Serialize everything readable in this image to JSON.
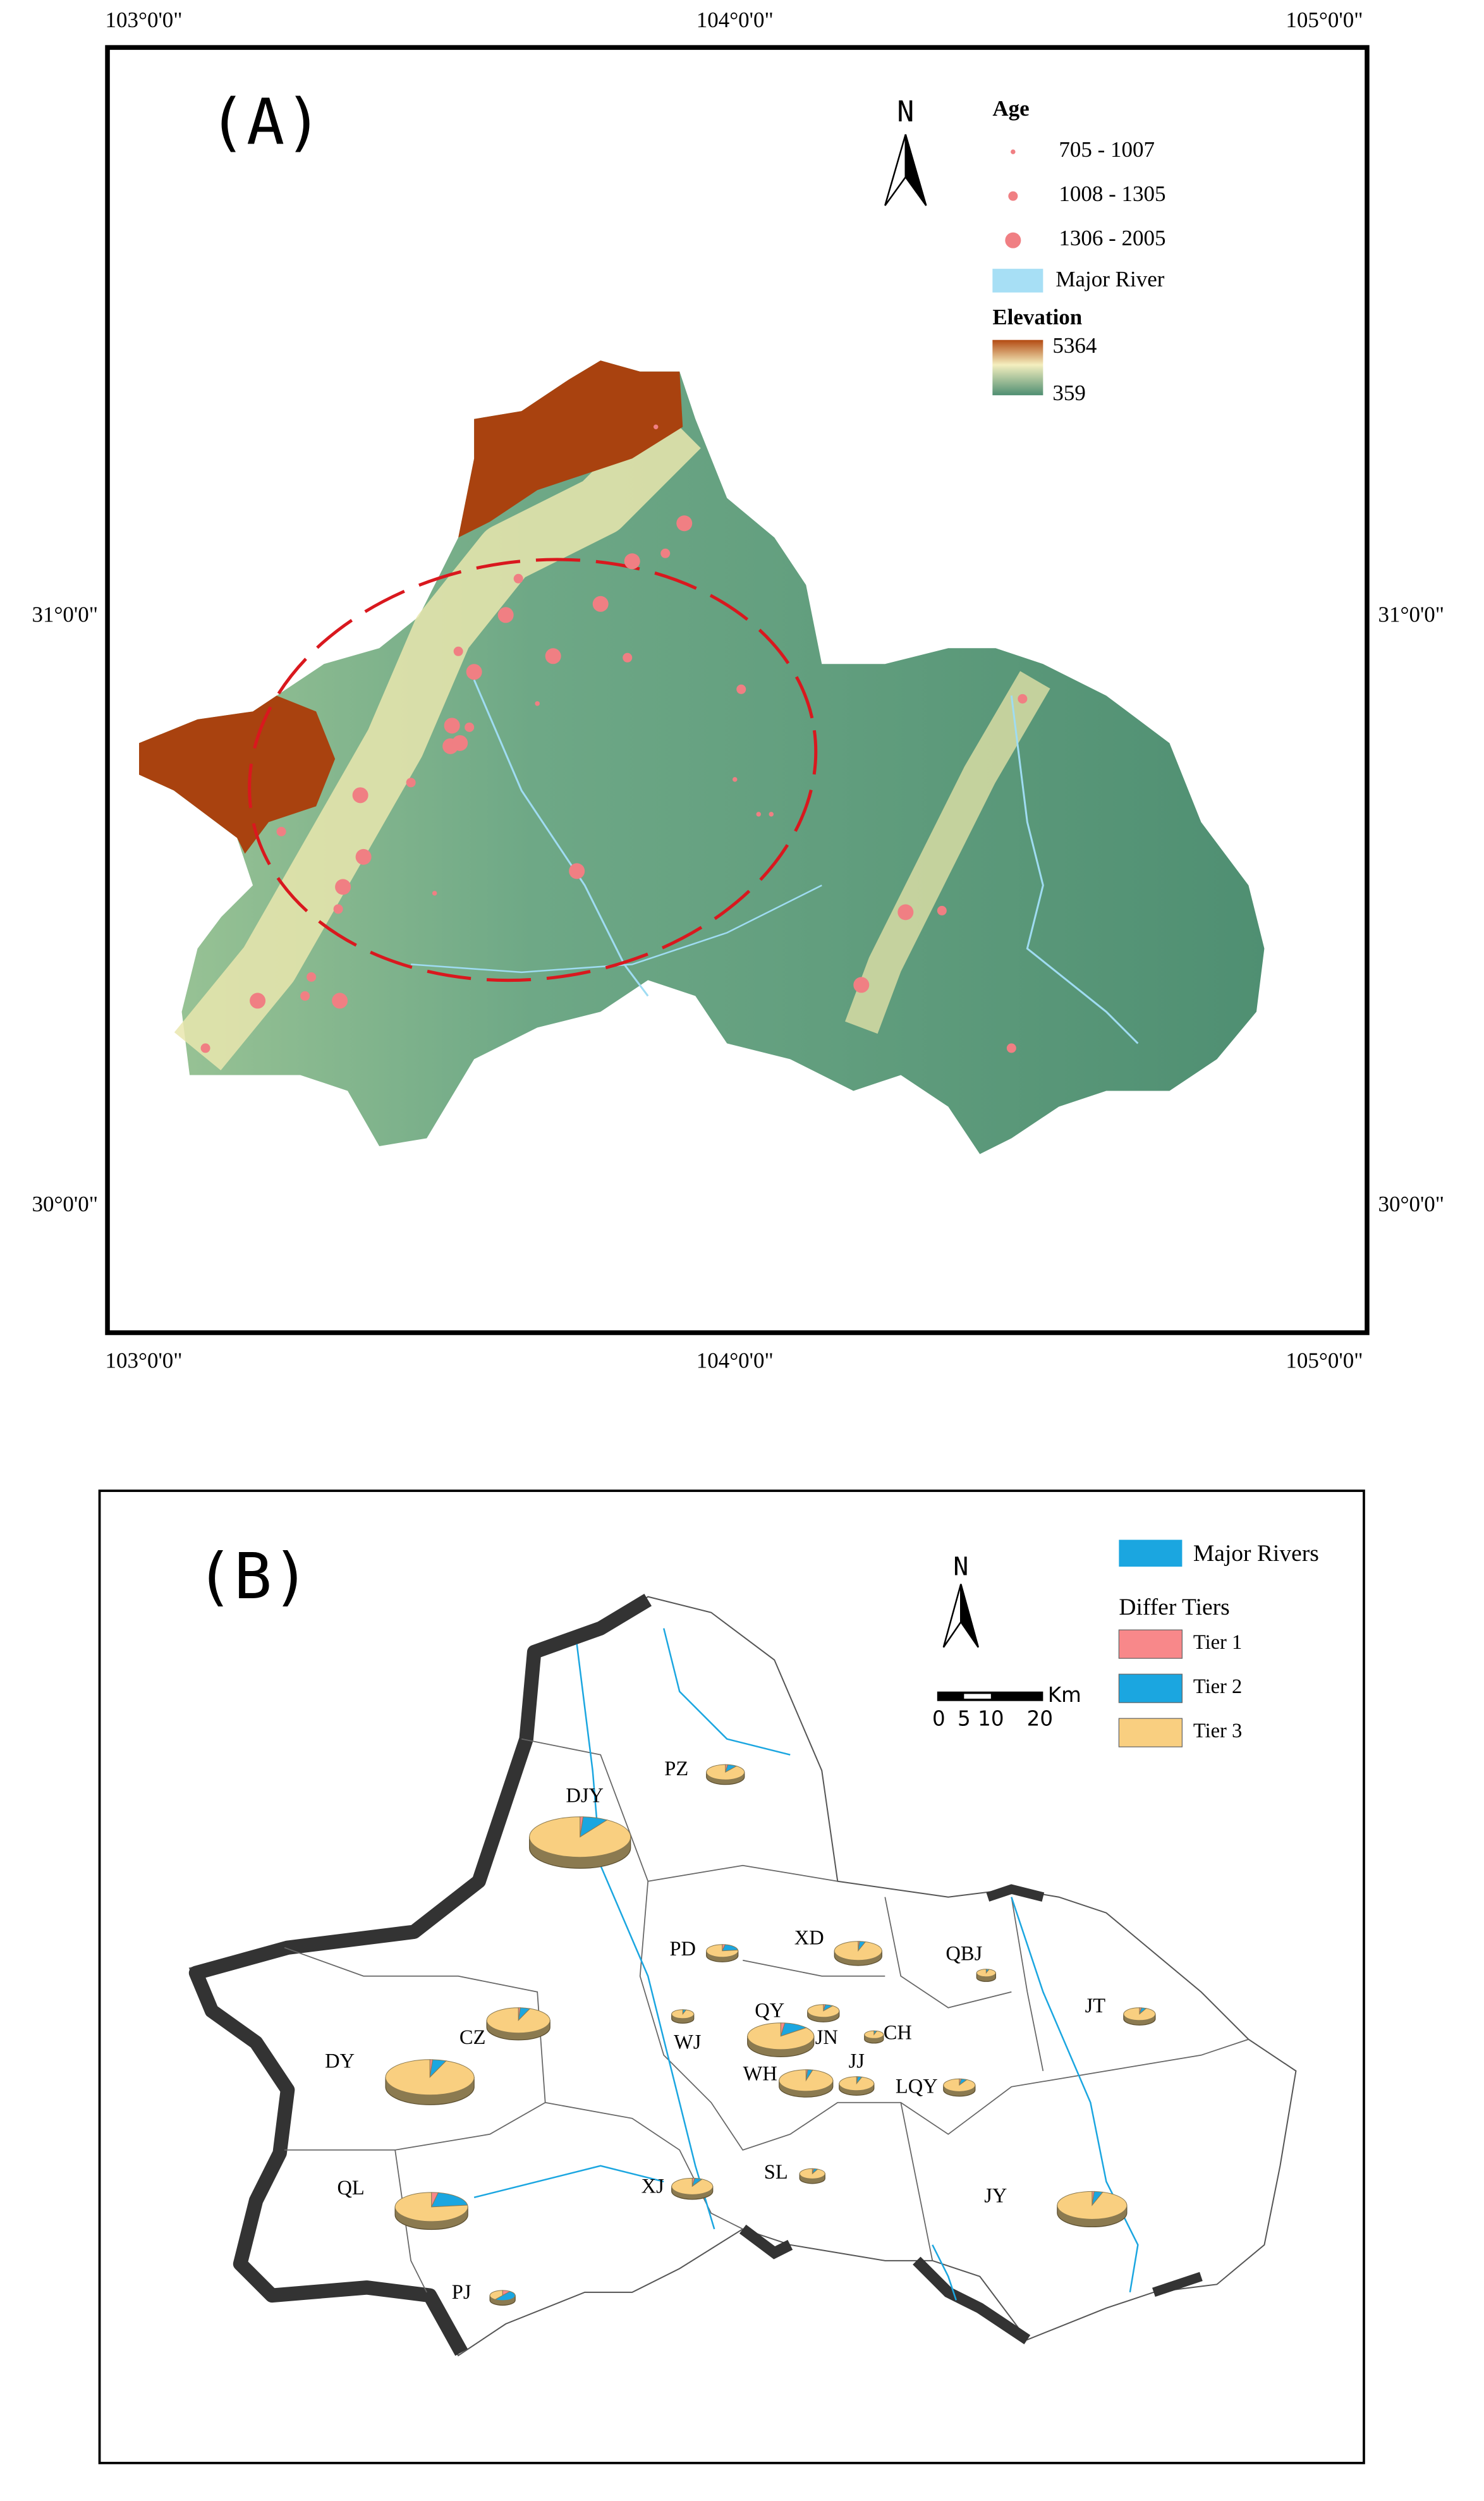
{
  "panel_a": {
    "label": "(A)",
    "lon_labels": [
      "103°0'0\"",
      "104°0'0\"",
      "105°0'0\""
    ],
    "lat_labels": [
      "31°0'0\"",
      "30°0'0\""
    ],
    "north": "N",
    "legend": {
      "age_title": "Age",
      "age_classes": [
        "705 - 1007",
        "1008 - 1305",
        "1306 - 2005"
      ],
      "river": "Major River",
      "elevation_title": "Elevation",
      "elevation_max": 5364,
      "elevation_min": 359
    }
  },
  "panel_b": {
    "label": "(B)",
    "north": "N",
    "scale_labels": [
      "0",
      "5",
      "10",
      "20"
    ],
    "scale_unit": "Km",
    "legend": {
      "river": "Major Rivers",
      "tiers_title": "Differ Tiers",
      "tiers": [
        {
          "name": "Tier 1",
          "color": "#f8888a"
        },
        {
          "name": "Tier 2",
          "color": "#1ba6e0"
        },
        {
          "name": "Tier 3",
          "color": "#f9cf80"
        }
      ]
    },
    "districts": [
      {
        "label": "DJY",
        "tiers": [
          1,
          8,
          91
        ]
      },
      {
        "label": "PZ",
        "tiers": [
          2,
          8,
          90
        ]
      },
      {
        "label": "PD",
        "tiers": [
          3,
          20,
          77
        ]
      },
      {
        "label": "XD",
        "tiers": [
          1,
          4,
          95
        ]
      },
      {
        "label": "QBJ",
        "tiers": [
          0,
          5,
          95
        ]
      },
      {
        "label": "CZ",
        "tiers": [
          1,
          5,
          94
        ]
      },
      {
        "label": "QY",
        "tiers": [
          2,
          12,
          86
        ]
      },
      {
        "label": "JN",
        "tiers": [
          2,
          8,
          90
        ]
      },
      {
        "label": "CH",
        "tiers": [
          0,
          5,
          95
        ]
      },
      {
        "label": "JT",
        "tiers": [
          2,
          5,
          93
        ]
      },
      {
        "label": "WJ",
        "tiers": [
          0,
          5,
          95
        ]
      },
      {
        "label": "DY",
        "tiers": [
          1,
          5,
          94
        ]
      },
      {
        "label": "WH",
        "tiers": [
          1,
          3,
          96
        ]
      },
      {
        "label": "JJ",
        "tiers": [
          1,
          4,
          95
        ]
      },
      {
        "label": "LQY",
        "tiers": [
          2,
          6,
          92
        ]
      },
      {
        "label": "QL",
        "tiers": [
          3,
          20,
          77
        ]
      },
      {
        "label": "XJ",
        "tiers": [
          2,
          6,
          92
        ]
      },
      {
        "label": "SL",
        "tiers": [
          2,
          5,
          93
        ]
      },
      {
        "label": "JY",
        "tiers": [
          1,
          4,
          95
        ]
      },
      {
        "label": "PJ",
        "tiers": [
          10,
          50,
          40
        ]
      }
    ]
  }
}
